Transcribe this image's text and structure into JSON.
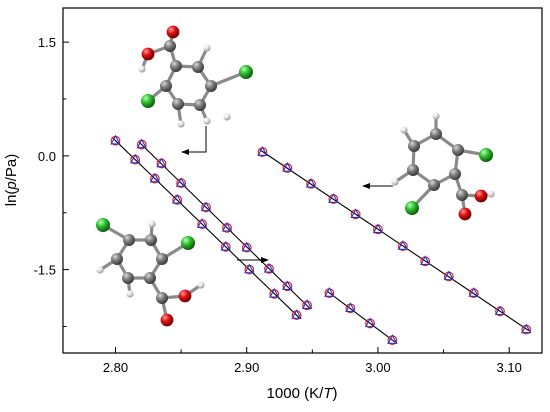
{
  "chart_data": {
    "type": "scatter",
    "xlabel_parts": [
      "1000 (K/",
      "T",
      ")"
    ],
    "ylabel_parts": [
      "ln(",
      "p",
      "/Pa)"
    ],
    "xlim": [
      2.76,
      3.125
    ],
    "ylim": [
      -2.6,
      1.95
    ],
    "x_ticks": [
      2.8,
      2.9,
      3.0,
      3.1
    ],
    "x_tick_labels": [
      "2.80",
      "2.90",
      "3.00",
      "3.10"
    ],
    "y_ticks": [
      1.5,
      0.0,
      -1.5
    ],
    "y_tick_labels": [
      "1.5",
      "0.0",
      "-1.5"
    ],
    "grid": false,
    "series": [
      {
        "points": [
          {
            "x": 2.82,
            "y": 0.15
          },
          {
            "x": 2.835,
            "y": -0.1
          },
          {
            "x": 2.85,
            "y": -0.36
          },
          {
            "x": 2.869,
            "y": -0.68
          },
          {
            "x": 2.885,
            "y": -0.95
          },
          {
            "x": 2.9,
            "y": -1.21
          },
          {
            "x": 2.917,
            "y": -1.49
          },
          {
            "x": 2.931,
            "y": -1.72
          },
          {
            "x": 2.946,
            "y": -1.97
          }
        ]
      },
      {
        "points": [
          {
            "x": 2.8,
            "y": 0.2
          },
          {
            "x": 2.815,
            "y": -0.05
          },
          {
            "x": 2.83,
            "y": -0.3
          },
          {
            "x": 2.847,
            "y": -0.58
          },
          {
            "x": 2.866,
            "y": -0.9
          },
          {
            "x": 2.884,
            "y": -1.2
          },
          {
            "x": 2.902,
            "y": -1.5
          },
          {
            "x": 2.921,
            "y": -1.82
          },
          {
            "x": 2.938,
            "y": -2.1
          }
        ]
      },
      {
        "points": [
          {
            "x": 2.963,
            "y": -1.81
          },
          {
            "x": 2.979,
            "y": -2.01
          },
          {
            "x": 2.994,
            "y": -2.21
          },
          {
            "x": 3.011,
            "y": -2.43
          }
        ]
      },
      {
        "points": [
          {
            "x": 2.912,
            "y": 0.05
          },
          {
            "x": 2.931,
            "y": -0.16
          },
          {
            "x": 2.949,
            "y": -0.37
          },
          {
            "x": 2.966,
            "y": -0.57
          },
          {
            "x": 2.983,
            "y": -0.77
          },
          {
            "x": 3.0,
            "y": -0.97
          },
          {
            "x": 3.019,
            "y": -1.19
          },
          {
            "x": 3.036,
            "y": -1.39
          },
          {
            "x": 3.054,
            "y": -1.59
          },
          {
            "x": 3.073,
            "y": -1.81
          },
          {
            "x": 3.093,
            "y": -2.05
          },
          {
            "x": 3.113,
            "y": -2.29
          }
        ]
      }
    ]
  },
  "colors": {
    "circle_marker": "#e0202a",
    "triangle_marker": "#3030c0",
    "fit_line": "#000000",
    "carbon": "#808080",
    "hydrogen": "#e6e6e6",
    "oxygen": "#e01010",
    "chlorine": "#30c030"
  },
  "annotations": {
    "molecules": [
      "2,5-dichlorobenzoic acid",
      "2,6-dichlorobenzoic acid",
      "2,4-dichlorobenzoic acid"
    ],
    "arrow_icons": [
      "bent-arrow-icon",
      "left-arrow-icon",
      "right-arrow-icon"
    ]
  }
}
